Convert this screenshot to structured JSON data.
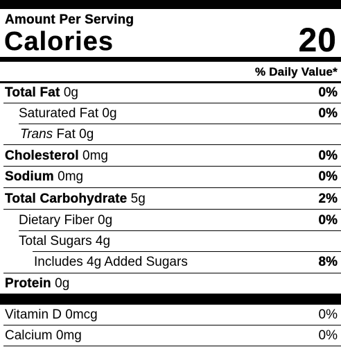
{
  "header": {
    "amount_per_serving": "Amount Per Serving",
    "calories_label": "Calories",
    "calories_value": "20",
    "daily_value_header": "% Daily Value*"
  },
  "nutrients": {
    "total_fat": {
      "label": "Total Fat",
      "amount": "0g",
      "dv": "0%"
    },
    "saturated_fat": {
      "label": "Saturated Fat 0g",
      "dv": "0%"
    },
    "trans_fat": {
      "label_italic": "Trans",
      "label_rest": " Fat 0g"
    },
    "cholesterol": {
      "label": "Cholesterol",
      "amount": "0mg",
      "dv": "0%"
    },
    "sodium": {
      "label": "Sodium",
      "amount": "0mg",
      "dv": "0%"
    },
    "total_carbohydrate": {
      "label": "Total Carbohydrate",
      "amount": "5g",
      "dv": "2%"
    },
    "dietary_fiber": {
      "label": "Dietary Fiber 0g",
      "dv": "0%"
    },
    "total_sugars": {
      "label": "Total Sugars 4g"
    },
    "added_sugars": {
      "label": "Includes 4g Added Sugars",
      "dv": "8%"
    },
    "protein": {
      "label": "Protein",
      "amount": "0g"
    }
  },
  "vitamins": {
    "vitamin_d": {
      "label": "Vitamin D 0mcg",
      "dv": "0%"
    },
    "calcium": {
      "label": "Calcium 0mg",
      "dv": "0%"
    }
  }
}
